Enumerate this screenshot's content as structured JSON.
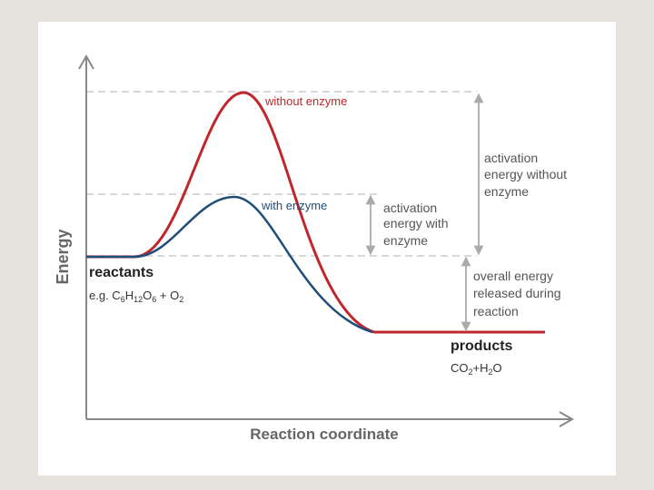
{
  "axes": {
    "x_label": "Reaction coordinate",
    "y_label": "Energy"
  },
  "curves": {
    "without_enzyme": {
      "label": "without enzyme",
      "color": "#c0272d"
    },
    "with_enzyme": {
      "label": "with enzyme",
      "color": "#1f4e79"
    }
  },
  "annotations": {
    "activation_without": [
      "activation",
      "energy without",
      "enzyme"
    ],
    "activation_with": [
      "activation",
      "energy with",
      "enzyme"
    ],
    "overall_energy": [
      "overall energy",
      "released during",
      "reaction"
    ]
  },
  "reactants": {
    "title": "reactants",
    "formula": {
      "prefix": "e.g. C",
      "sub1": "6",
      "h": "H",
      "sub2": "12",
      "o": "O",
      "sub3": "6",
      "rest": " + O",
      "sub4": "2"
    }
  },
  "products": {
    "title": "products",
    "formula": {
      "co": "CO",
      "sub1": "2",
      "plus": "+H",
      "sub2": "2",
      "o": "O"
    }
  },
  "colors": {
    "axis": "#888888",
    "dashed_guide": "#cccccc",
    "arrow": "#aaaaaa",
    "text_dark": "#222222",
    "text_grey": "#555555"
  }
}
